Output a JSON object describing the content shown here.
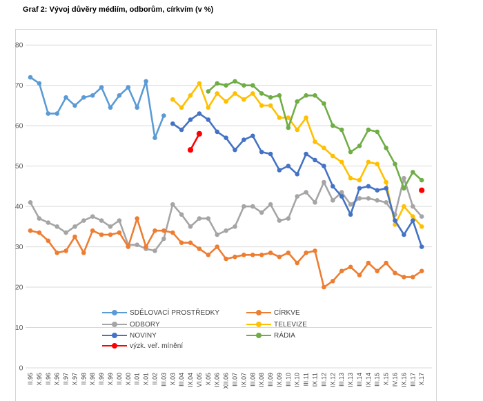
{
  "title": "Graf 2: Vývoj důvěry médiím, odborům, církvím (v %)",
  "chart_data": {
    "type": "line",
    "title": "Graf 2: Vývoj důvěry médiím, odborům, církvím (v %)",
    "xlabel": "",
    "ylabel": "",
    "ylim": [
      0,
      80
    ],
    "yticks": [
      0,
      10,
      20,
      30,
      40,
      50,
      60,
      70,
      80
    ],
    "grid": true,
    "legend_position": "bottom-inside-two-columns",
    "categories": [
      "II.95",
      "X.95",
      "II.96",
      "X.96",
      "II.97",
      "X.97",
      "II.98",
      "X.98",
      "II.99",
      "X.99",
      "II.00",
      "X.00",
      "II.01",
      "X.01",
      "II.02",
      "III.03",
      "X.03",
      "III.04",
      "IX.04",
      "VI.05",
      "X.05",
      "IX.06",
      "XII.06",
      "III.07",
      "IX.07",
      "III.08",
      "IX.08",
      "III.09",
      "IX.09",
      "III.10",
      "IX.10",
      "III.11",
      "IX.11",
      "III.12",
      "IX.12",
      "III.13",
      "IX.13",
      "III.14",
      "IX.14",
      "III.15",
      "X.15",
      "IV.16",
      "IX.16",
      "III.17",
      "X.17"
    ],
    "series": [
      {
        "name": "SDĚLOVACÍ PROSTŘEDKY",
        "color": "#5B9BD5",
        "values": [
          72,
          70.5,
          63,
          63,
          67,
          65,
          67,
          67.5,
          69.5,
          64.5,
          67.5,
          69.5,
          64.5,
          71,
          57,
          62.5,
          null,
          null,
          null,
          null,
          null,
          null,
          null,
          null,
          null,
          null,
          null,
          null,
          null,
          null,
          null,
          null,
          null,
          null,
          null,
          null,
          null,
          null,
          null,
          null,
          null,
          null,
          null,
          null,
          null
        ]
      },
      {
        "name": "CÍRKVE",
        "color": "#ED7D31",
        "values": [
          34,
          33.5,
          31.5,
          28.5,
          29,
          32.5,
          28.5,
          34,
          33,
          33,
          33.5,
          30,
          37,
          30,
          34,
          34,
          33.5,
          31,
          31,
          29.5,
          28,
          30,
          27,
          27.5,
          28,
          28,
          28,
          28.5,
          27.5,
          28.5,
          26,
          28.5,
          29,
          20,
          21.5,
          24,
          25,
          23,
          26,
          24,
          26,
          23.5,
          22.5,
          22.5,
          24
        ]
      },
      {
        "name": "ODBORY",
        "color": "#A5A5A5",
        "values": [
          41,
          37,
          36,
          35,
          33.5,
          35,
          36.5,
          37.5,
          36.5,
          35,
          36.5,
          30.5,
          30.5,
          29.5,
          29,
          32,
          40.5,
          38,
          35,
          37,
          37,
          33,
          34,
          35,
          40,
          40,
          38.5,
          40.5,
          36.5,
          37,
          42.5,
          43.5,
          41,
          46,
          41.5,
          43.5,
          40.5,
          42,
          42,
          41.5,
          41,
          38,
          47,
          40,
          37.5
        ]
      },
      {
        "name": "TELEVIZE",
        "color": "#FFC000",
        "values": [
          null,
          null,
          null,
          null,
          null,
          null,
          null,
          null,
          null,
          null,
          null,
          null,
          null,
          null,
          null,
          null,
          66.5,
          64.5,
          67.5,
          70.5,
          64.5,
          68,
          66,
          68,
          66.5,
          68,
          65,
          65,
          62,
          62,
          59,
          62,
          56,
          54.5,
          52.5,
          51,
          47,
          46.5,
          51,
          50.5,
          46,
          35.5,
          40,
          37.5,
          35
        ]
      },
      {
        "name": "NOVINY",
        "color": "#4472C4",
        "values": [
          null,
          null,
          null,
          null,
          null,
          null,
          null,
          null,
          null,
          null,
          null,
          null,
          null,
          null,
          null,
          null,
          60.5,
          59,
          61.5,
          63,
          61.5,
          58.5,
          57,
          54,
          56.5,
          57.5,
          53.5,
          53,
          49,
          50,
          48,
          53,
          51.5,
          50,
          45,
          42.5,
          38,
          44.5,
          45,
          44,
          44.5,
          36.5,
          33,
          36.5,
          30
        ]
      },
      {
        "name": "RÁDIA",
        "color": "#70AD47",
        "values": [
          null,
          null,
          null,
          null,
          null,
          null,
          null,
          null,
          null,
          null,
          null,
          null,
          null,
          null,
          null,
          null,
          null,
          null,
          null,
          null,
          68.5,
          70.5,
          70,
          71,
          70,
          70,
          68,
          67,
          67.5,
          59.5,
          66,
          67.5,
          67.5,
          65.5,
          60,
          59,
          53.5,
          55,
          59,
          58.5,
          54.5,
          50.5,
          44.5,
          48.5,
          46.5
        ]
      },
      {
        "name": "výzk. veř. mínění",
        "color": "#FF0000",
        "values": [
          null,
          null,
          null,
          null,
          null,
          null,
          null,
          null,
          null,
          null,
          null,
          null,
          null,
          null,
          null,
          null,
          null,
          null,
          54,
          58,
          null,
          null,
          null,
          null,
          null,
          null,
          null,
          null,
          null,
          null,
          null,
          null,
          null,
          null,
          null,
          null,
          null,
          null,
          null,
          null,
          null,
          null,
          null,
          null,
          44
        ]
      }
    ],
    "axis_text_color": "#595959",
    "category_text_color": "#404040",
    "gridline_color": "#d9d9d9"
  }
}
